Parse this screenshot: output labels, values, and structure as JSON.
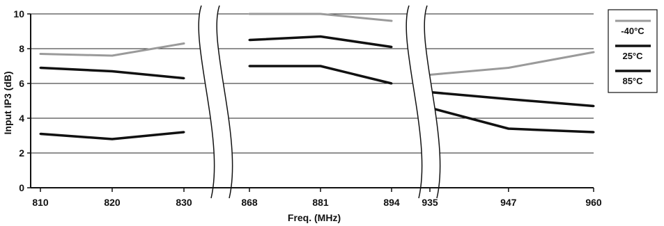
{
  "chart_data": {
    "type": "line",
    "xlabel": "Freq. (MHz)",
    "ylabel": "Input IP3 (dB)",
    "ylim": [
      0,
      10
    ],
    "yticks": [
      "0",
      "2",
      "4",
      "6",
      "8",
      "10"
    ],
    "grid": true,
    "legend_position": "right",
    "legend_entries": [
      "-40°C",
      "25°C",
      "85°C"
    ],
    "segments": [
      {
        "x": [
          810,
          820,
          830
        ],
        "tick_labels": [
          "810",
          "820",
          "830"
        ],
        "series": [
          {
            "name": "-40°C",
            "color": "#9a9a9a",
            "values": [
              7.7,
              7.6,
              8.3
            ]
          },
          {
            "name": "25°C",
            "color": "#111111",
            "values": [
              6.9,
              6.7,
              6.3
            ]
          },
          {
            "name": "85°C",
            "color": "#111111",
            "values": [
              3.1,
              2.8,
              3.2
            ]
          }
        ]
      },
      {
        "x": [
          868,
          881,
          894
        ],
        "tick_labels": [
          "868",
          "881",
          "894"
        ],
        "series": [
          {
            "name": "-40°C",
            "color": "#9a9a9a",
            "values": [
              10.0,
              10.0,
              9.6
            ]
          },
          {
            "name": "25°C",
            "color": "#111111",
            "values": [
              8.5,
              8.7,
              8.1
            ]
          },
          {
            "name": "85°C",
            "color": "#111111",
            "values": [
              7.0,
              7.0,
              6.0
            ]
          }
        ]
      },
      {
        "x": [
          935,
          947,
          960
        ],
        "tick_labels": [
          "935",
          "947",
          "960"
        ],
        "series": [
          {
            "name": "-40°C",
            "color": "#9a9a9a",
            "values": [
              6.5,
              6.9,
              7.8
            ]
          },
          {
            "name": "25°C",
            "color": "#111111",
            "values": [
              5.5,
              5.1,
              4.7
            ]
          },
          {
            "name": "85°C",
            "color": "#111111",
            "values": [
              4.6,
              3.4,
              3.2
            ]
          }
        ]
      }
    ]
  }
}
